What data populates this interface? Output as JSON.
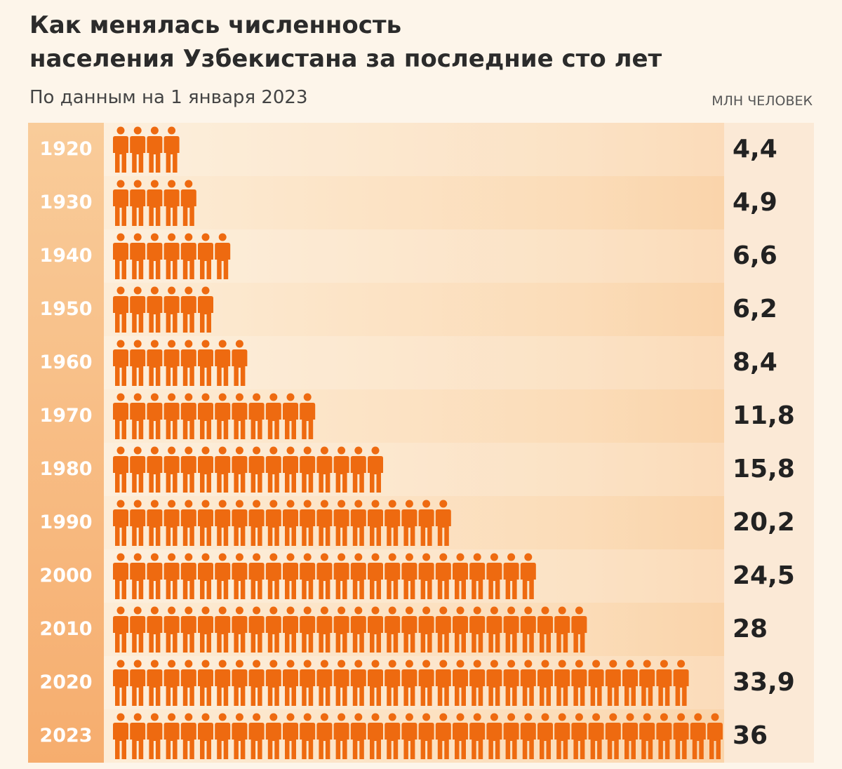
{
  "title_line1": "Как менялась численность",
  "title_line2": "населения Узбекистана за последние сто лет",
  "subtitle": "По данным на 1 января 2023",
  "unit": "МЛН ЧЕЛОВЕК",
  "colors": {
    "figure": "#ee6a10",
    "year_text": "#ffffff",
    "value_text": "#222222"
  },
  "chart_data": {
    "type": "bar",
    "title": "Как менялась численность населения Узбекистана за последние сто лет",
    "subtitle": "По данным на 1 января 2023",
    "unit": "МЛН ЧЕЛОВЕК",
    "categories": [
      "1920",
      "1930",
      "1940",
      "1950",
      "1960",
      "1970",
      "1980",
      "1990",
      "2000",
      "2010",
      "2020",
      "2023"
    ],
    "values": [
      4.4,
      4.9,
      6.6,
      6.2,
      8.4,
      11.8,
      15.8,
      20.2,
      24.5,
      28,
      33.9,
      36
    ],
    "value_labels": [
      "4,4",
      "4,9",
      "6,6",
      "6,2",
      "8,4",
      "11,8",
      "15,8",
      "20,2",
      "24,5",
      "28",
      "33,9",
      "36"
    ],
    "icons_per_row": [
      4,
      5,
      7,
      6,
      8,
      12,
      16,
      20,
      25,
      28,
      34,
      36
    ],
    "icon": "person-icon",
    "orientation": "horizontal"
  }
}
